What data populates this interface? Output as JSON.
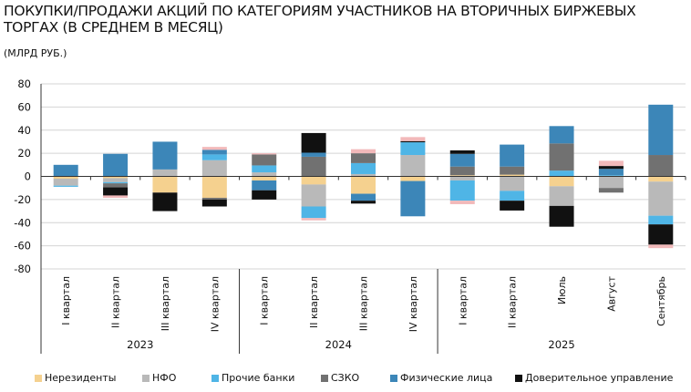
{
  "chart_data": {
    "type": "bar",
    "stacked": true,
    "title": "ПОКУПКИ/ПРОДАЖИ АКЦИЙ ПО КАТЕГОРИЯМ УЧАСТНИКОВ НА ВТОРИЧНЫХ БИРЖЕВЫХ ТОРГАХ (В СРЕДНЕМ В МЕСЯЦ)",
    "subtitle": "(МЛРД РУБ.)",
    "ylim": [
      -80,
      80
    ],
    "yticks": [
      80,
      60,
      40,
      20,
      0,
      -20,
      -40,
      -60,
      -80
    ],
    "grid": true,
    "legend_position": "bottom",
    "categories": [
      "I квартал",
      "II квартал",
      "III квартал",
      "IV квартал",
      "I квартал",
      "II квартал",
      "III квартал",
      "IV квартал",
      "I квартал",
      "II квартал",
      "Июль",
      "Август",
      "Сентябрь"
    ],
    "groups": [
      {
        "label": "2023",
        "count": 4
      },
      {
        "label": "2024",
        "count": 4
      },
      {
        "label": "2025",
        "count": 5
      }
    ],
    "series": [
      {
        "name": "Нерезиденты",
        "color": "#f5d18f",
        "values": [
          -2,
          -1.5,
          -14,
          -18.5,
          -3.5,
          -7,
          -15,
          -4,
          1,
          1.5,
          -8.5,
          0,
          -4.5
        ]
      },
      {
        "name": "НФО",
        "color": "#b9b9b9",
        "values": [
          -6,
          -3.5,
          6,
          14,
          3.5,
          -19,
          2,
          18.5,
          -3.5,
          -12.5,
          -17,
          -10,
          -29.5
        ]
      },
      {
        "name": "Прочие банки",
        "color": "#4fb5e6",
        "values": [
          -1,
          -1,
          0,
          5,
          6,
          -10,
          9.5,
          11,
          -17.5,
          -8.5,
          5,
          1,
          -7.5
        ]
      },
      {
        "name": "СЗКО",
        "color": "#717171",
        "values": [
          0,
          -3.5,
          0,
          -1.5,
          9.5,
          17,
          8.5,
          0,
          7.5,
          7,
          23.5,
          -4,
          18.5
        ]
      },
      {
        "name": "Физические лица",
        "color": "#3c86b8",
        "values": [
          10,
          19.5,
          24,
          4,
          -8.5,
          3.5,
          -6,
          -30.5,
          11,
          19,
          15,
          5.5,
          43.5
        ]
      },
      {
        "name": "Доверительное управление",
        "color": "#111111",
        "values": [
          0,
          -7,
          -16,
          -6,
          -8,
          17,
          -2.5,
          1,
          3,
          -8.5,
          -18,
          2.5,
          -17.5
        ]
      },
      {
        "color": "#f2b9ba",
        "values": [
          0,
          -2,
          0,
          2.5,
          1,
          -2,
          3.5,
          3.5,
          -3,
          0,
          0,
          4.5,
          -3
        ]
      }
    ]
  }
}
